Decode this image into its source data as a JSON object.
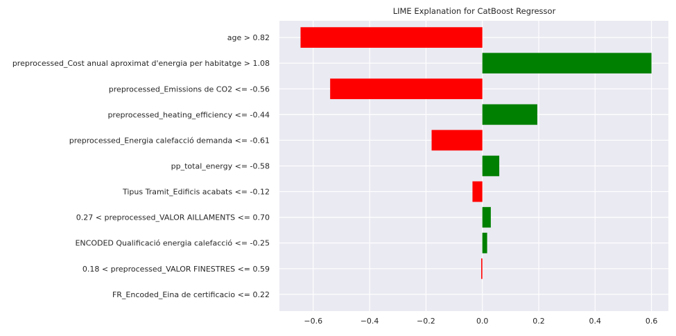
{
  "chart_data": {
    "type": "bar",
    "orientation": "horizontal",
    "title": "LIME Explanation for CatBoost Regressor",
    "xlabel": "",
    "ylabel": "",
    "xlim": [
      -0.72,
      0.66
    ],
    "xticks": [
      -0.6,
      -0.4,
      -0.2,
      0.0,
      0.2,
      0.4,
      0.6
    ],
    "xtick_labels": [
      "−0.6",
      "−0.4",
      "−0.2",
      "0.0",
      "0.2",
      "0.4",
      "0.6"
    ],
    "grid": true,
    "positive_color": "#008000",
    "negative_color": "#ff0000",
    "background_color": "#eaeaf2",
    "categories": [
      "age > 0.82",
      "preprocessed_Cost anual aproximat d'energia per habitatge > 1.08",
      "preprocessed_Emissions de CO2 <= -0.56",
      "preprocessed_heating_efficiency <= -0.44",
      "preprocessed_Energia calefacció demanda <= -0.61",
      "pp_total_energy <= -0.58",
      "Tipus Tramit_Edificis acabats <= -0.12",
      "0.27 < preprocessed_VALOR AILLAMENTS <= 0.70",
      "ENCODED Qualificació energia calefacció <= -0.25",
      "0.18 < preprocessed_VALOR FINESTRES <= 0.59",
      "FR_Encoded_Eina de certificacio <= 0.22"
    ],
    "values": [
      -0.645,
      0.6,
      -0.54,
      0.195,
      -0.18,
      0.06,
      -0.035,
      0.03,
      0.017,
      -0.004,
      0.0
    ]
  }
}
